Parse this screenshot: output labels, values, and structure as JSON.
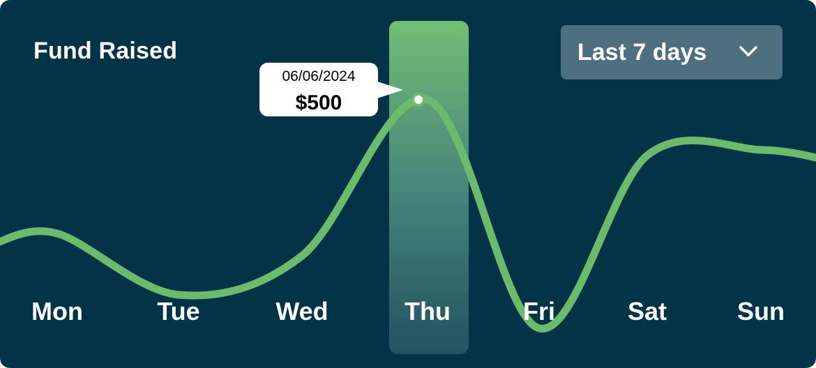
{
  "header": {
    "title": "Fund Raised"
  },
  "range_select": {
    "selected": "Last 7 days",
    "icon": "chevron-down-icon"
  },
  "tooltip": {
    "date": "06/06/2024",
    "value": "$500"
  },
  "colors": {
    "background": "#023347",
    "line": "#6cbb6c",
    "highlight_top": "#74be74",
    "dropdown_bg": "#4d6f80",
    "text": "#ffffff"
  },
  "chart_data": {
    "type": "line",
    "categories": [
      "Mon",
      "Tue",
      "Wed",
      "Thu",
      "Fri",
      "Sat",
      "Sun"
    ],
    "series": [
      {
        "values": [
          260,
          150,
          220,
          500,
          90,
          400,
          410
        ]
      }
    ],
    "highlighted_category": "Thu",
    "highlighted_value": 500,
    "curve": "smooth",
    "grid": false,
    "legend": "none"
  }
}
